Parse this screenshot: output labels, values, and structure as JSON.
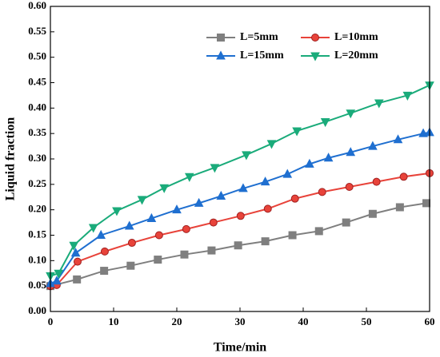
{
  "chart_data": {
    "type": "line",
    "xlabel": "Time/min",
    "ylabel": "Liquid fraction",
    "xlim": [
      0,
      60
    ],
    "ylim": [
      0,
      0.6
    ],
    "xticks": [
      0,
      10,
      20,
      30,
      40,
      50,
      60
    ],
    "yticks": [
      {
        "value": 0,
        "label": "0.00"
      },
      {
        "value": 0.05,
        "label": "0.05"
      },
      {
        "value": 0.1,
        "label": "0.10"
      },
      {
        "value": 0.15,
        "label": "0.15"
      },
      {
        "value": 0.2,
        "label": "0.20"
      },
      {
        "value": 0.25,
        "label": "0.25"
      },
      {
        "value": 0.3,
        "label": "0.30"
      },
      {
        "value": 0.35,
        "label": "0.35"
      },
      {
        "value": 0.4,
        "label": "0.40"
      },
      {
        "value": 0.45,
        "label": "0.45"
      },
      {
        "value": 0.5,
        "label": "0.50"
      },
      {
        "value": 0.55,
        "label": "0.55"
      },
      {
        "value": 0.6,
        "label": "0.60"
      }
    ],
    "legend": "upper right",
    "series": [
      {
        "name": "L=5mm",
        "color": "#7f7f7f",
        "marker": "square",
        "x": [
          0,
          4.2,
          8.5,
          12.7,
          17,
          21.2,
          25.5,
          29.7,
          34,
          38.3,
          42.5,
          46.8,
          51,
          55.3,
          59.5
        ],
        "values": [
          0.05,
          0.063,
          0.08,
          0.09,
          0.102,
          0.112,
          0.12,
          0.13,
          0.138,
          0.15,
          0.158,
          0.175,
          0.192,
          0.205,
          0.213
        ]
      },
      {
        "name": "L=10mm",
        "color": "#e8433a",
        "marker": "circle",
        "x": [
          0,
          1,
          4.3,
          8.6,
          12.9,
          17.2,
          21.5,
          25.8,
          30.1,
          34.4,
          38.7,
          43,
          47.3,
          51.6,
          55.9,
          60
        ],
        "values": [
          0.05,
          0.052,
          0.098,
          0.118,
          0.135,
          0.15,
          0.162,
          0.175,
          0.188,
          0.202,
          0.222,
          0.235,
          0.245,
          0.255,
          0.265,
          0.272
        ]
      },
      {
        "name": "L=15mm",
        "color": "#1f6fd0",
        "marker": "triangle-up",
        "x": [
          0,
          1,
          4,
          8,
          12.5,
          16,
          20,
          23.5,
          27,
          30.5,
          34,
          37.5,
          41,
          44,
          47.5,
          51,
          55,
          59,
          60
        ],
        "values": [
          0.055,
          0.06,
          0.115,
          0.15,
          0.168,
          0.183,
          0.2,
          0.213,
          0.227,
          0.242,
          0.255,
          0.27,
          0.29,
          0.302,
          0.313,
          0.325,
          0.338,
          0.35,
          0.352
        ]
      },
      {
        "name": "L=20mm",
        "color": "#1aab7a",
        "marker": "triangle-down",
        "x": [
          0,
          1.3,
          3.7,
          6.8,
          10.5,
          14.5,
          18,
          22,
          26,
          31,
          35,
          39,
          43.5,
          47.5,
          52,
          56.5,
          60
        ],
        "values": [
          0.07,
          0.075,
          0.13,
          0.165,
          0.198,
          0.22,
          0.243,
          0.265,
          0.283,
          0.308,
          0.33,
          0.355,
          0.373,
          0.39,
          0.41,
          0.425,
          0.445
        ]
      }
    ]
  }
}
